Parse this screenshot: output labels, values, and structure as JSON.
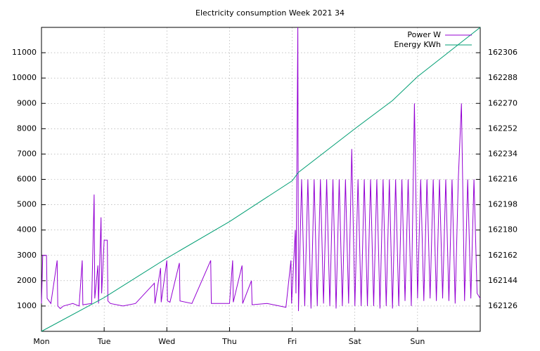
{
  "chart_data": {
    "type": "line",
    "title": "Electricity consumption Week 2021 34",
    "xlim": [
      0,
      7
    ],
    "xticks": [
      {
        "value": 0,
        "label": "Mon"
      },
      {
        "value": 1,
        "label": "Tue"
      },
      {
        "value": 2,
        "label": "Wed"
      },
      {
        "value": 3,
        "label": "Thu"
      },
      {
        "value": 4,
        "label": "Fri"
      },
      {
        "value": 5,
        "label": "Sat"
      },
      {
        "value": 6,
        "label": "Sun"
      }
    ],
    "ylim": [
      0,
      12000
    ],
    "yticks": [
      1000,
      2000,
      3000,
      4000,
      5000,
      6000,
      7000,
      8000,
      9000,
      10000,
      11000
    ],
    "y2lim": [
      162108,
      162324
    ],
    "y2ticks": [
      162126,
      162144,
      162162,
      162180,
      162198,
      162216,
      162234,
      162252,
      162270,
      162288,
      162306
    ],
    "grid": true,
    "legend": "top-right",
    "series": [
      {
        "name": "Power W",
        "color": "#9400d3",
        "x": [
          0,
          0.02,
          0.08,
          0.09,
          0.15,
          0.25,
          0.26,
          0.3,
          0.35,
          0.5,
          0.6,
          0.65,
          0.66,
          0.8,
          0.84,
          0.85,
          0.9,
          0.91,
          0.95,
          0.96,
          1.0,
          1.05,
          1.06,
          1.1,
          1.3,
          1.5,
          1.8,
          1.81,
          1.9,
          1.91,
          2.0,
          2.01,
          2.05,
          2.2,
          2.21,
          2.4,
          2.7,
          2.71,
          3.0,
          3.05,
          3.06,
          3.2,
          3.21,
          3.35,
          3.36,
          3.6,
          3.9,
          3.98,
          3.99,
          4.05,
          4.06,
          4.09,
          4.1,
          4.15,
          4.2,
          4.25,
          4.3,
          4.35,
          4.4,
          4.45,
          4.5,
          4.55,
          4.6,
          4.65,
          4.7,
          4.75,
          4.8,
          4.85,
          4.9,
          4.95,
          5.0,
          5.05,
          5.1,
          5.15,
          5.2,
          5.25,
          5.3,
          5.35,
          5.4,
          5.45,
          5.5,
          5.55,
          5.6,
          5.65,
          5.7,
          5.75,
          5.8,
          5.85,
          5.9,
          5.95,
          6.0,
          6.05,
          6.1,
          6.15,
          6.2,
          6.25,
          6.3,
          6.35,
          6.4,
          6.45,
          6.5,
          6.55,
          6.6,
          6.65,
          6.7,
          6.75,
          6.8,
          6.85,
          6.9,
          6.95,
          7.0
        ],
        "values": [
          1100,
          3000,
          3000,
          1300,
          1100,
          2800,
          1000,
          900,
          1000,
          1100,
          1000,
          2800,
          1050,
          1100,
          5400,
          1300,
          2600,
          1100,
          4500,
          1500,
          3600,
          3600,
          1200,
          1100,
          1000,
          1100,
          1900,
          1100,
          2500,
          1150,
          2800,
          1200,
          1150,
          2700,
          1200,
          1100,
          2800,
          1100,
          1100,
          2800,
          1150,
          2600,
          1100,
          2000,
          1050,
          1100,
          950,
          2800,
          1100,
          4000,
          1500,
          12000,
          800,
          6000,
          1000,
          6000,
          900,
          6000,
          1000,
          6000,
          1100,
          6000,
          1000,
          6000,
          900,
          6000,
          1000,
          6000,
          1100,
          7200,
          1000,
          6000,
          1000,
          6000,
          1000,
          6000,
          1000,
          6000,
          900,
          6000,
          1000,
          6000,
          900,
          6000,
          1000,
          6000,
          1200,
          6000,
          1000,
          9000,
          1300,
          6000,
          1200,
          6000,
          1300,
          6000,
          1200,
          6000,
          1300,
          6000,
          1200,
          6000,
          1100,
          6000,
          9000,
          1200,
          6000,
          1300,
          6000,
          1500,
          1300
        ]
      },
      {
        "name": "Energy KWh",
        "color": "#009e73",
        "axis": "y2",
        "x": [
          0,
          1,
          2,
          3,
          4,
          4.1,
          5,
          5.6,
          6,
          7
        ],
        "values": [
          162108,
          162132,
          162160,
          162186,
          162215,
          162221,
          162252,
          162272,
          162289,
          162324
        ]
      }
    ]
  }
}
